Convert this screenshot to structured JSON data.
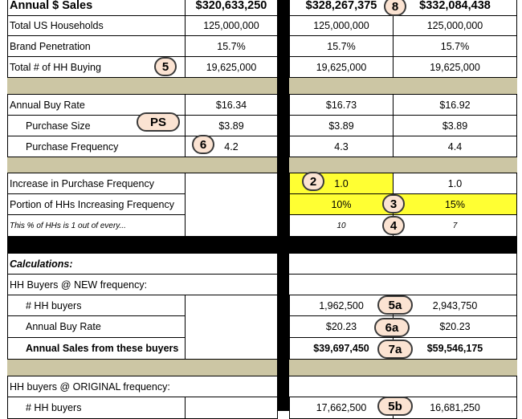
{
  "rows": {
    "annual_sales": {
      "label": "Annual $ Sales",
      "v1": "$320,633,250",
      "v2": "$328,267,375",
      "v3": "$332,084,438"
    },
    "total_households": {
      "label": "Total US Households",
      "v1": "125,000,000",
      "v2": "125,000,000",
      "v3": "125,000,000"
    },
    "brand_penetration": {
      "label": "Brand Penetration",
      "v1": "15.7%",
      "v2": "15.7%",
      "v3": "15.7%"
    },
    "total_hh_buying": {
      "label": "Total # of HH Buying",
      "v1": "19,625,000",
      "v2": "19,625,000",
      "v3": "19,625,000"
    },
    "annual_buy_rate": {
      "label": "Annual Buy Rate",
      "v1": "$16.34",
      "v2": "$16.73",
      "v3": "$16.92"
    },
    "purchase_size": {
      "label": "Purchase Size",
      "v1": "$3.89",
      "v2": "$3.89",
      "v3": "$3.89"
    },
    "purchase_frequency": {
      "label": "Purchase Frequency",
      "v1": "4.2",
      "v2": "4.3",
      "v3": "4.4"
    },
    "increase_frequency": {
      "label": "Increase in Purchase Frequency",
      "v2": "1.0",
      "v3": "1.0"
    },
    "portion_increasing": {
      "label": "Portion of HHs Increasing Frequency",
      "v2": "10%",
      "v3": "15%"
    },
    "one_out_of": {
      "label": "This % of HHs is 1 out of every...",
      "v2": "10",
      "v3": "7"
    },
    "calculations": {
      "label": "Calculations:"
    },
    "new_frequency": {
      "label": "HH Buyers @ NEW frequency:"
    },
    "new_hh_buyers": {
      "label": "# HH buyers",
      "v2": "1,962,500",
      "v3": "2,943,750"
    },
    "new_buy_rate": {
      "label": "Annual Buy Rate",
      "v2": "$20.23",
      "v3": "$20.23"
    },
    "new_annual_sales": {
      "label": "Annual Sales from these buyers",
      "v2": "$39,697,450",
      "v3": "$59,546,175"
    },
    "original_frequency": {
      "label": "HH buyers @ ORIGINAL frequency:"
    },
    "orig_hh_buyers": {
      "label": "# HH buyers",
      "v2": "17,662,500",
      "v3": "16,681,250"
    }
  },
  "badges": {
    "b8": "8",
    "b5": "5",
    "bps": "PS",
    "b6": "6",
    "b2": "2",
    "b3": "3",
    "b4": "4",
    "b5a": "5a",
    "b6a": "6a",
    "b7a": "7a",
    "b5b": "5b"
  },
  "colors": {
    "highlight": "#ffff33",
    "separator": "#ccc6a4",
    "badge_fill": "#fbe3d2",
    "border": "#000000"
  }
}
